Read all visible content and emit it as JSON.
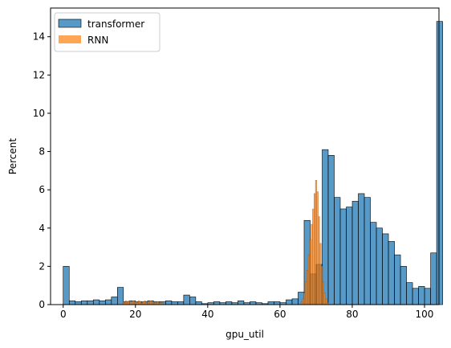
{
  "chart_data": {
    "type": "bar",
    "title": "",
    "xlabel": "gpu_util",
    "ylabel": "Percent",
    "xlim": [
      -3.5,
      104
    ],
    "ylim": [
      0,
      15.5
    ],
    "xticks": [
      0,
      20,
      40,
      60,
      80,
      100
    ],
    "yticks": [
      0,
      2,
      4,
      6,
      8,
      10,
      12,
      14
    ],
    "grid": false,
    "legend_position": "top-left",
    "series": [
      {
        "name": "transformer",
        "color": "#1f77b4",
        "bin_width": 1.667,
        "bin_start": 0,
        "values": [
          2.0,
          0.2,
          0.15,
          0.2,
          0.2,
          0.25,
          0.2,
          0.25,
          0.4,
          0.9,
          0.15,
          0.2,
          0.15,
          0.15,
          0.2,
          0.15,
          0.15,
          0.2,
          0.15,
          0.15,
          0.5,
          0.4,
          0.15,
          0.05,
          0.1,
          0.15,
          0.1,
          0.15,
          0.1,
          0.2,
          0.1,
          0.15,
          0.1,
          0.05,
          0.15,
          0.15,
          0.1,
          0.25,
          0.3,
          0.65,
          4.4,
          1.6,
          2.1,
          8.1,
          7.8,
          5.6,
          5.0,
          5.1,
          5.4,
          5.8,
          5.6,
          4.3,
          4.0,
          3.7,
          3.3,
          2.6,
          2.0,
          1.15,
          0.85,
          0.95,
          0.85,
          2.7,
          14.8
        ]
      },
      {
        "name": "RNN",
        "color": "#ff7f0e",
        "bin_width": 0.4,
        "centers": [
          16.6,
          17.0,
          17.4,
          17.8,
          18.2,
          18.6,
          19.0,
          19.4,
          19.8,
          20.2,
          20.6,
          21.0,
          21.4,
          21.8,
          22.2,
          22.6,
          23.0,
          23.4,
          23.8,
          24.2,
          24.6,
          25.0,
          25.4,
          25.8,
          26.2,
          26.6,
          27.0,
          27.4,
          66.0,
          66.4,
          66.8,
          67.2,
          67.6,
          68.0,
          68.4,
          68.8,
          69.2,
          69.6,
          70.0,
          70.4,
          70.8,
          71.2,
          71.6,
          72.0,
          72.4,
          72.8,
          73.2
        ],
        "values": [
          0.15,
          0.1,
          0.2,
          0.15,
          0.2,
          0.1,
          0.15,
          0.2,
          0.1,
          0.15,
          0.1,
          0.2,
          0.15,
          0.1,
          0.15,
          0.2,
          0.1,
          0.15,
          0.1,
          0.2,
          0.1,
          0.15,
          0.1,
          0.1,
          0.15,
          0.1,
          0.1,
          0.1,
          0.15,
          0.3,
          0.6,
          1.2,
          1.8,
          2.6,
          3.4,
          4.2,
          5.0,
          5.8,
          6.5,
          5.9,
          4.6,
          3.2,
          2.0,
          1.2,
          0.6,
          0.3,
          0.1
        ]
      }
    ]
  }
}
